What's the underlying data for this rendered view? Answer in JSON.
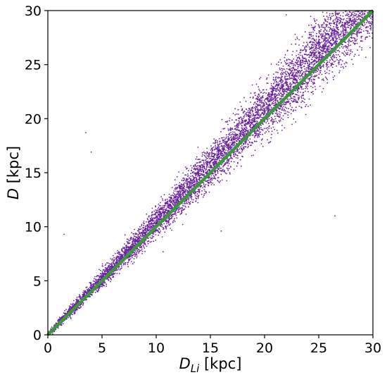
{
  "chart_data": {
    "type": "scatter",
    "xlabel": {
      "main": "D",
      "sub": "Li",
      "unit": " [kpc]"
    },
    "ylabel": {
      "main": "D",
      "unit": " [kpc]"
    },
    "xlim": [
      0,
      30
    ],
    "ylim": [
      0,
      30
    ],
    "xticks": [
      "0",
      "5",
      "10",
      "15",
      "20",
      "25",
      "30"
    ],
    "yticks": [
      "0",
      "5",
      "10",
      "15",
      "20",
      "25",
      "30"
    ],
    "grid": false,
    "legend": "none",
    "series": [
      {
        "kind": "scatter",
        "color": "#6a1fa0",
        "description_points": [
          [
            0.5,
            0.5
          ],
          [
            2,
            2.1
          ],
          [
            4,
            4.2
          ],
          [
            6,
            6.3
          ],
          [
            8,
            8.3
          ],
          [
            10,
            10.4
          ],
          [
            12,
            12.5
          ],
          [
            14,
            14.5
          ],
          [
            16,
            16.6
          ],
          [
            18,
            18.7
          ],
          [
            20,
            20.8
          ],
          [
            22,
            22.8
          ],
          [
            24,
            24.9
          ],
          [
            26,
            27.0
          ],
          [
            28,
            29.0
          ],
          [
            29.5,
            29.8
          ],
          [
            3.5,
            18.7
          ],
          [
            4,
            16.9
          ],
          [
            1.5,
            9.3
          ],
          [
            26.5,
            11.0
          ],
          [
            16,
            9.6
          ],
          [
            22,
            29.6
          ]
        ]
      },
      {
        "kind": "line",
        "color": "#3a9a3a",
        "points": [
          [
            0,
            0
          ],
          [
            30,
            30
          ]
        ]
      }
    ]
  }
}
